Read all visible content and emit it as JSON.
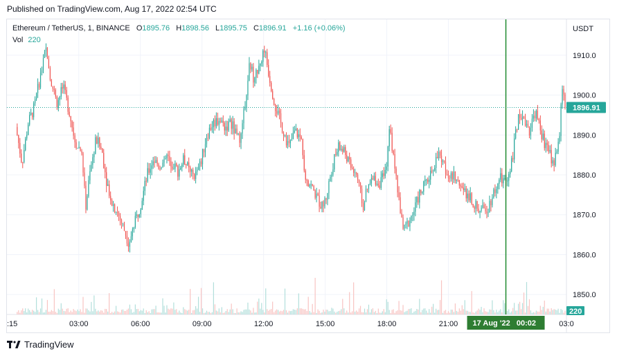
{
  "header": {
    "published": "Published on TradingView.com, Aug 17, 2022 02:54 UTC"
  },
  "legend": {
    "symbol": "Ethereum / TetherUS, 1, BINANCE",
    "o_label": "O",
    "o": "1895.76",
    "h_label": "H",
    "h": "1898.56",
    "l_label": "L",
    "l": "1895.75",
    "c_label": "C",
    "c": "1896.91",
    "change": "+1.16 (+0.06%)",
    "vol_label": "Vol",
    "vol": "220"
  },
  "colors": {
    "up": "#26a69a",
    "down": "#ef5350",
    "price_line": "#26a69a",
    "crosshair": "#26a69a",
    "badge": "#26a69a"
  },
  "chart_data": {
    "type": "candlestick",
    "currency": "USDT",
    "ylim": [
      1845,
      1919
    ],
    "y_ticks": [
      1850,
      1860,
      1870,
      1880,
      1890,
      1900,
      1910
    ],
    "x_ticks": [
      {
        "h": -0.5,
        "label": ":15"
      },
      {
        "h": 3,
        "label": "03:00"
      },
      {
        "h": 6,
        "label": "06:00"
      },
      {
        "h": 9,
        "label": "09:00"
      },
      {
        "h": 12,
        "label": "12:00"
      },
      {
        "h": 15,
        "label": "15:00"
      },
      {
        "h": 18,
        "label": "18:00"
      },
      {
        "h": 21,
        "label": "21:00"
      },
      {
        "h": 26.75,
        "label": "03:0"
      }
    ],
    "xlim_hours": [
      -0.5,
      26.75
    ],
    "last_price": "1896.91",
    "last_volume": "220",
    "crosshair_h": 23.8,
    "crosshair_label": "17 Aug '22   00:02",
    "price_path": [
      [
        0,
        1892
      ],
      [
        0.3,
        1883
      ],
      [
        0.6,
        1893
      ],
      [
        0.9,
        1897
      ],
      [
        1.2,
        1905
      ],
      [
        1.5,
        1912
      ],
      [
        1.7,
        1904
      ],
      [
        2.0,
        1898
      ],
      [
        2.3,
        1902
      ],
      [
        2.6,
        1896
      ],
      [
        2.9,
        1888
      ],
      [
        3.2,
        1886
      ],
      [
        3.4,
        1872
      ],
      [
        3.6,
        1880
      ],
      [
        3.9,
        1889
      ],
      [
        4.2,
        1886
      ],
      [
        4.4,
        1879
      ],
      [
        4.7,
        1873
      ],
      [
        5.0,
        1870
      ],
      [
        5.3,
        1866
      ],
      [
        5.5,
        1863
      ],
      [
        5.8,
        1868
      ],
      [
        6.1,
        1873
      ],
      [
        6.4,
        1880
      ],
      [
        6.7,
        1884
      ],
      [
        7.0,
        1882
      ],
      [
        7.3,
        1885
      ],
      [
        7.6,
        1883
      ],
      [
        7.9,
        1881
      ],
      [
        8.2,
        1884
      ],
      [
        8.5,
        1880
      ],
      [
        8.8,
        1880
      ],
      [
        9.0,
        1883
      ],
      [
        9.3,
        1890
      ],
      [
        9.6,
        1893
      ],
      [
        9.9,
        1894
      ],
      [
        10.2,
        1892
      ],
      [
        10.5,
        1893
      ],
      [
        10.8,
        1889
      ],
      [
        11.0,
        1890
      ],
      [
        11.2,
        1900
      ],
      [
        11.4,
        1908
      ],
      [
        11.6,
        1904
      ],
      [
        11.9,
        1908
      ],
      [
        12.1,
        1912
      ],
      [
        12.3,
        1906
      ],
      [
        12.6,
        1898
      ],
      [
        12.9,
        1893
      ],
      [
        13.1,
        1890
      ],
      [
        13.3,
        1887
      ],
      [
        13.6,
        1891
      ],
      [
        13.9,
        1889
      ],
      [
        14.1,
        1880
      ],
      [
        14.3,
        1878
      ],
      [
        14.6,
        1875
      ],
      [
        14.9,
        1872
      ],
      [
        15.1,
        1874
      ],
      [
        15.4,
        1882
      ],
      [
        15.7,
        1887
      ],
      [
        16.0,
        1886
      ],
      [
        16.3,
        1882
      ],
      [
        16.6,
        1880
      ],
      [
        16.9,
        1872
      ],
      [
        17.1,
        1876
      ],
      [
        17.4,
        1879
      ],
      [
        17.7,
        1878
      ],
      [
        18.0,
        1880
      ],
      [
        18.2,
        1892
      ],
      [
        18.5,
        1880
      ],
      [
        18.7,
        1872
      ],
      [
        18.9,
        1866
      ],
      [
        19.1,
        1868
      ],
      [
        19.4,
        1871
      ],
      [
        19.7,
        1876
      ],
      [
        20.0,
        1878
      ],
      [
        20.3,
        1882
      ],
      [
        20.6,
        1885
      ],
      [
        20.9,
        1882
      ],
      [
        21.2,
        1879
      ],
      [
        21.5,
        1880
      ],
      [
        21.8,
        1876
      ],
      [
        22.1,
        1875
      ],
      [
        22.4,
        1872
      ],
      [
        22.7,
        1871
      ],
      [
        23.0,
        1872
      ],
      [
        23.3,
        1876
      ],
      [
        23.6,
        1879
      ],
      [
        23.9,
        1878
      ],
      [
        24.2,
        1885
      ],
      [
        24.5,
        1896
      ],
      [
        24.8,
        1894
      ],
      [
        25.0,
        1891
      ],
      [
        25.3,
        1896
      ],
      [
        25.6,
        1890
      ],
      [
        25.9,
        1886
      ],
      [
        26.2,
        1883
      ],
      [
        26.5,
        1890
      ],
      [
        26.6,
        1903
      ],
      [
        26.75,
        1897
      ]
    ]
  },
  "brand": {
    "name": "TradingView"
  }
}
